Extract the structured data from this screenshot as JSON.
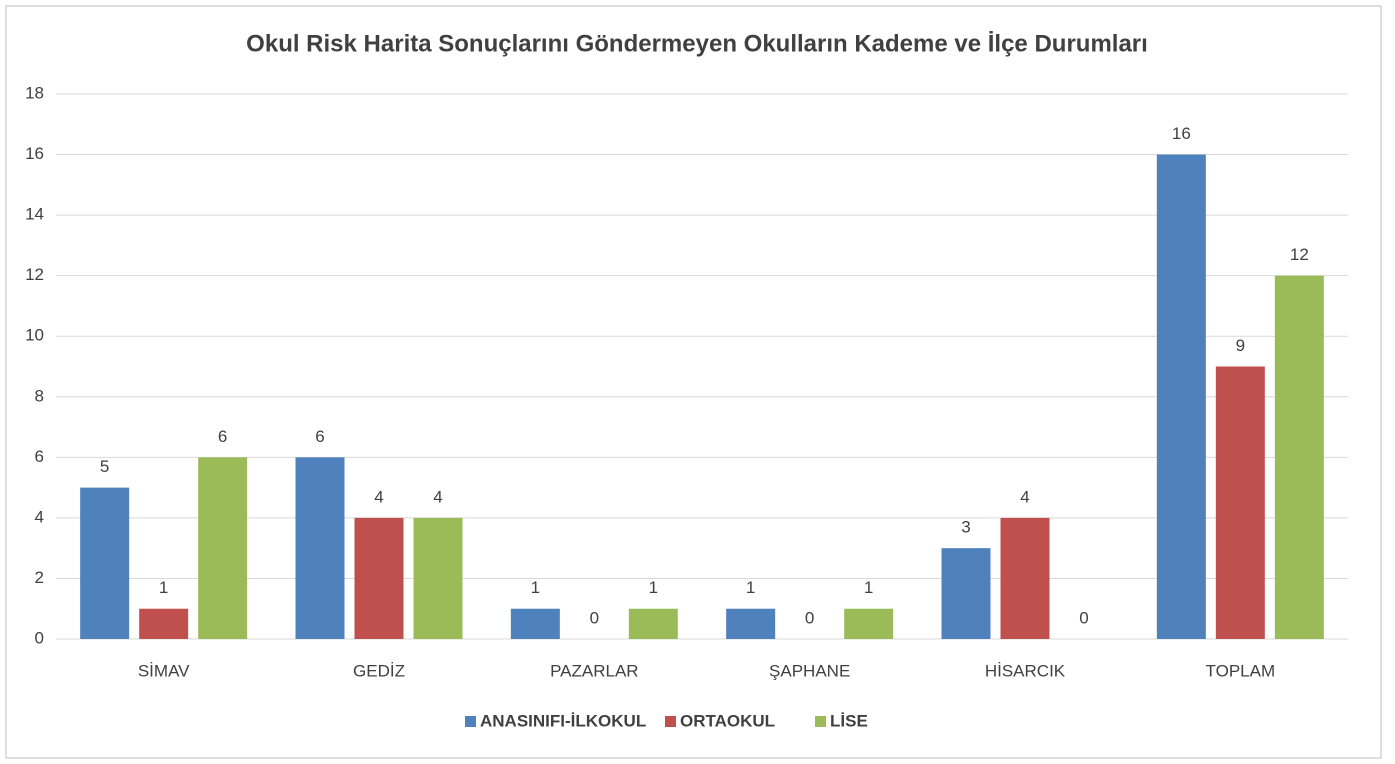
{
  "chart_data": {
    "type": "bar",
    "title": "Okul Risk Harita Sonuçlarını Göndermeyen Okulların Kademe ve İlçe Durumları",
    "categories": [
      "SİMAV",
      "GEDİZ",
      "PAZARLAR",
      "ŞAPHANE",
      "HİSARCIK",
      "TOPLAM"
    ],
    "series": [
      {
        "name": "ANASINIFI-İLKOKUL",
        "color": "#4f81bd",
        "values": [
          5,
          6,
          1,
          1,
          3,
          16
        ]
      },
      {
        "name": "ORTAOKUL",
        "color": "#c0504d",
        "values": [
          1,
          4,
          0,
          0,
          4,
          9
        ]
      },
      {
        "name": "LİSE",
        "color": "#9bbb59",
        "values": [
          6,
          4,
          1,
          1,
          0,
          12
        ]
      }
    ],
    "ylim": [
      0,
      18
    ],
    "yticks": [
      0,
      2,
      4,
      6,
      8,
      10,
      12,
      14,
      16,
      18
    ],
    "grid": true,
    "legend": "bottom"
  }
}
